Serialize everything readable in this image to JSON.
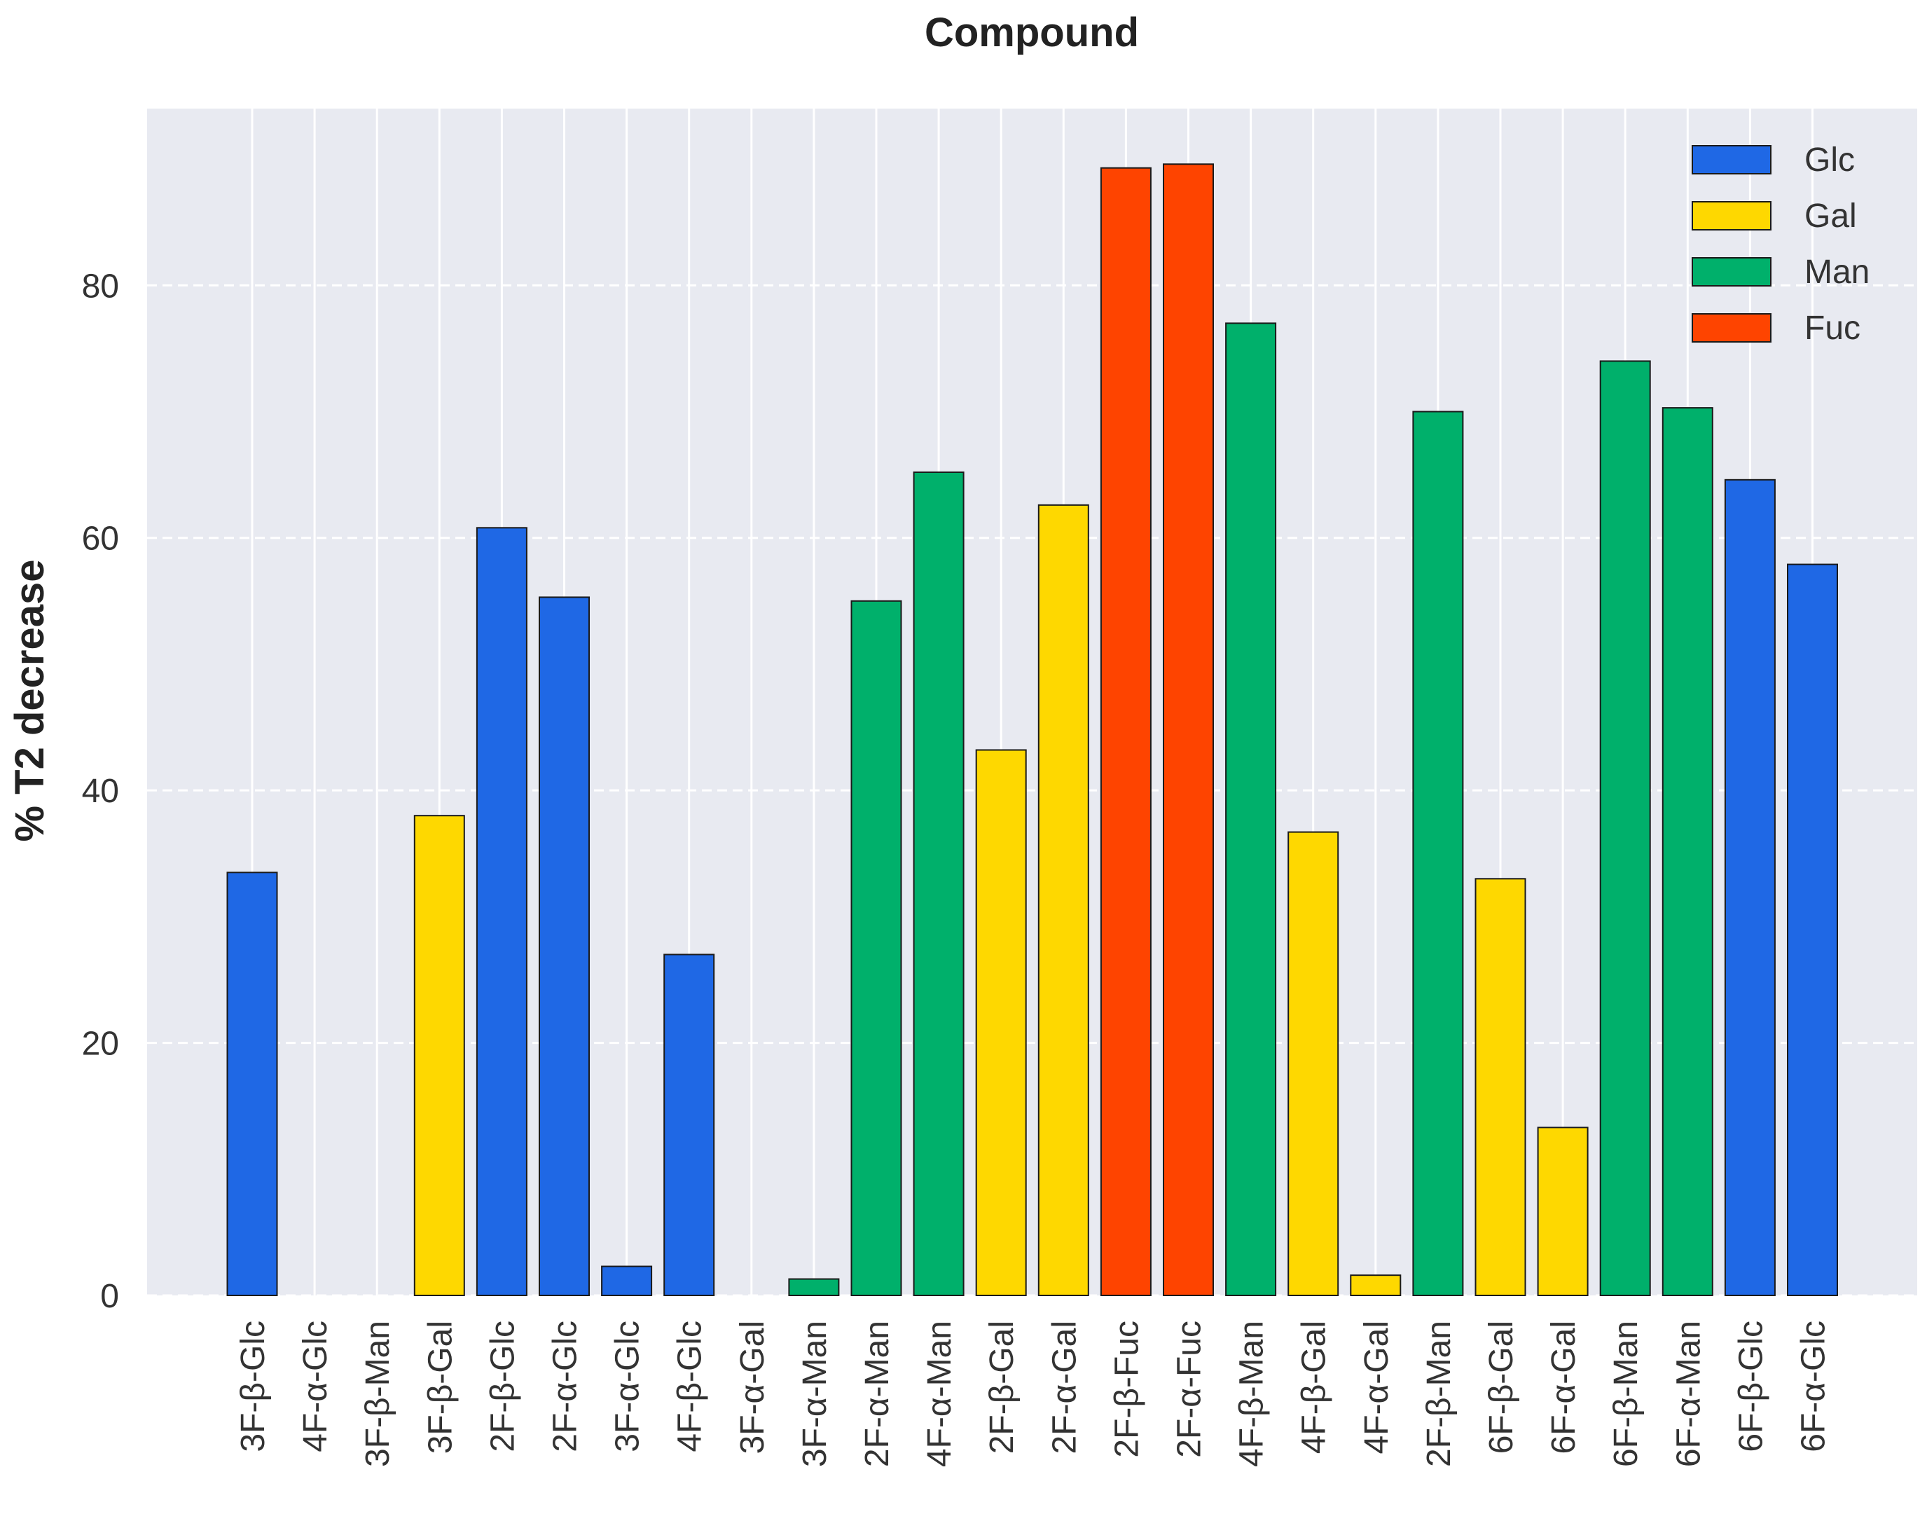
{
  "chart_data": {
    "type": "bar",
    "title": "Compound",
    "xlabel": "",
    "ylabel": "% T2 decrease",
    "ylim": [
      0,
      94
    ],
    "yticks": [
      0,
      20,
      40,
      60,
      80
    ],
    "grid": true,
    "legend_position": "top-right",
    "categories": [
      "3F-β-Glc",
      "4F-α-Glc",
      "3F-β-Man",
      "3F-β-Gal",
      "2F-β-Glc",
      "2F-α-Glc",
      "3F-α-Glc",
      "4F-β-Glc",
      "3F-α-Gal",
      "3F-α-Man",
      "2F-α-Man",
      "4F-α-Man",
      "2F-β-Gal",
      "2F-α-Gal",
      "2F-β-Fuc",
      "2F-α-Fuc",
      "4F-β-Man",
      "4F-β-Gal",
      "4F-α-Gal",
      "2F-β-Man",
      "6F-β-Gal",
      "6F-α-Gal",
      "6F-β-Man",
      "6F-α-Man",
      "6F-β-Glc",
      "6F-α-Glc"
    ],
    "values": [
      33.5,
      0,
      0,
      38,
      60.8,
      55.3,
      2.3,
      27,
      0,
      1.3,
      55,
      65.2,
      43.2,
      62.6,
      89.3,
      89.6,
      77,
      36.7,
      1.6,
      70,
      33,
      13.3,
      74,
      70.3,
      64.6,
      57.9
    ],
    "groups": [
      "Glc",
      "Glc",
      "Man",
      "Gal",
      "Glc",
      "Glc",
      "Glc",
      "Glc",
      "Gal",
      "Man",
      "Man",
      "Man",
      "Gal",
      "Gal",
      "Fuc",
      "Fuc",
      "Man",
      "Gal",
      "Gal",
      "Man",
      "Gal",
      "Gal",
      "Man",
      "Man",
      "Glc",
      "Glc"
    ],
    "legend": [
      {
        "name": "Glc",
        "color": "#1f68e5"
      },
      {
        "name": "Gal",
        "color": "#fed800"
      },
      {
        "name": "Man",
        "color": "#00b06b"
      },
      {
        "name": "Fuc",
        "color": "#fe4400"
      }
    ]
  }
}
